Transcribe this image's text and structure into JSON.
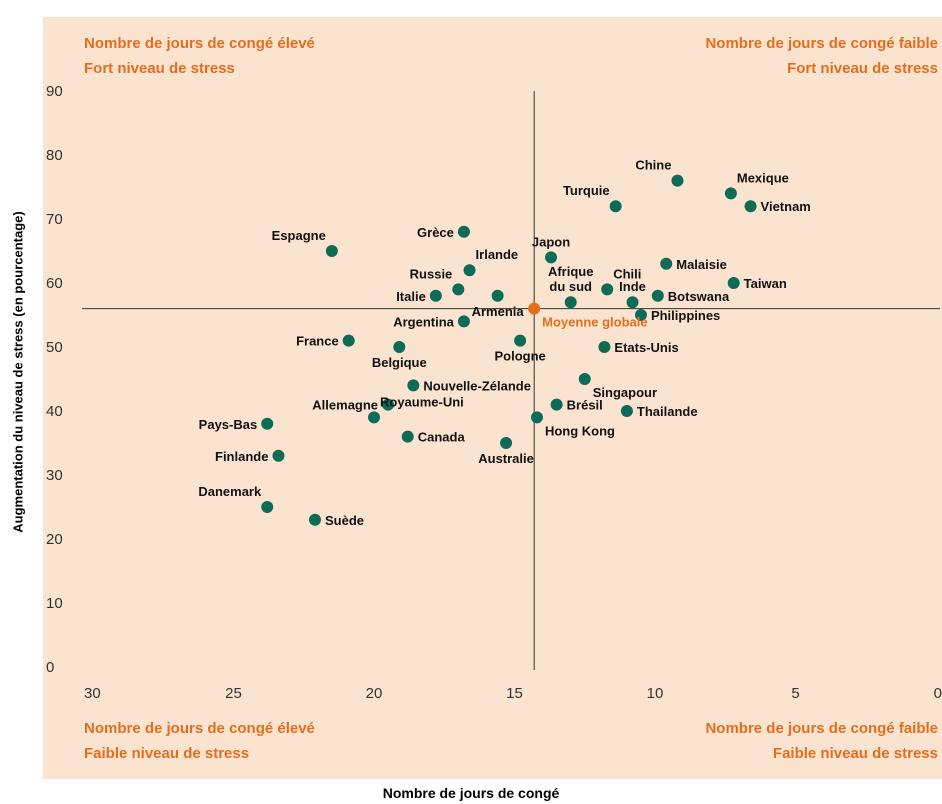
{
  "chart_data": {
    "type": "scatter",
    "xlabel": "Nombre de jours de congé",
    "ylabel": "Augmentation du niveau de stress (en pourcentage)",
    "x_axis": {
      "min": 0,
      "max": 30,
      "reversed": true,
      "ticks": [
        30,
        25,
        20,
        15,
        10,
        5,
        0
      ]
    },
    "y_axis": {
      "min": 0,
      "max": 90,
      "ticks": [
        0,
        10,
        20,
        30,
        40,
        50,
        60,
        70,
        80,
        90
      ]
    },
    "grid": false,
    "reference_lines": {
      "x": 14.3,
      "y": 56
    },
    "quadrant_labels": {
      "top_left": [
        "Nombre de jours de congé élevé",
        "Fort niveau de stress"
      ],
      "top_right": [
        "Nombre de jours de congé faible",
        "Fort niveau de stress"
      ],
      "bottom_left": [
        "Nombre de jours de congé élevé",
        "Faible niveau de stress"
      ],
      "bottom_right": [
        "Nombre de jours de congé faible",
        "Faible niveau de stress"
      ]
    },
    "colors": {
      "points": "#0e6b58",
      "highlight": "#e46d1e",
      "background": "#fae4d0",
      "quadrant_text": "#e46d1e"
    },
    "points": [
      {
        "name": "Chine",
        "x": 9.2,
        "y": 76,
        "label": "Chine",
        "anchor": "top-left"
      },
      {
        "name": "Mexique",
        "x": 7.3,
        "y": 74,
        "label": "Mexique",
        "anchor": "top-right"
      },
      {
        "name": "Vietnam",
        "x": 6.6,
        "y": 72,
        "label": "Vietnam",
        "anchor": "right"
      },
      {
        "name": "Turquie",
        "x": 11.4,
        "y": 72,
        "label": "Turquie",
        "anchor": "top-left"
      },
      {
        "name": "Grèce",
        "x": 16.8,
        "y": 68,
        "label": "Grèce",
        "anchor": "left"
      },
      {
        "name": "Espagne",
        "x": 21.5,
        "y": 65,
        "label": "Espagne",
        "anchor": "top-left"
      },
      {
        "name": "Japon",
        "x": 13.7,
        "y": 64,
        "label": "Japon",
        "anchor": "top"
      },
      {
        "name": "Malaisie",
        "x": 9.6,
        "y": 63,
        "label": "Malaisie",
        "anchor": "right"
      },
      {
        "name": "Irlande",
        "x": 16.6,
        "y": 62,
        "label": "Irlande",
        "anchor": "top-right"
      },
      {
        "name": "Russie",
        "x": 17.0,
        "y": 59,
        "label": "Russie",
        "anchor": "top-left"
      },
      {
        "name": "Taiwan",
        "x": 7.2,
        "y": 60,
        "label": "Taiwan",
        "anchor": "right"
      },
      {
        "name": "Chili",
        "x": 11.7,
        "y": 59,
        "label": "Chili",
        "anchor": "top-right"
      },
      {
        "name": "Italie",
        "x": 17.8,
        "y": 58,
        "label": "Italie",
        "anchor": "left"
      },
      {
        "name": "Armenia",
        "x": 15.6,
        "y": 58,
        "label": "Armenia",
        "anchor": "bottom"
      },
      {
        "name": "Afrique du sud",
        "x": 13.0,
        "y": 57,
        "label": "Afrique\ndu sud",
        "anchor": "top"
      },
      {
        "name": "Inde",
        "x": 10.8,
        "y": 57,
        "label": "Inde",
        "anchor": "top"
      },
      {
        "name": "Botswana",
        "x": 9.9,
        "y": 58,
        "label": "Botswana",
        "anchor": "right"
      },
      {
        "name": "Philippines",
        "x": 10.5,
        "y": 55,
        "label": "Philippines",
        "anchor": "right"
      },
      {
        "name": "Argentina",
        "x": 16.8,
        "y": 54,
        "label": "Argentina",
        "anchor": "left"
      },
      {
        "name": "France",
        "x": 20.9,
        "y": 51,
        "label": "France",
        "anchor": "left"
      },
      {
        "name": "Belgique",
        "x": 19.1,
        "y": 50,
        "label": "Belgique",
        "anchor": "bottom"
      },
      {
        "name": "Pologne",
        "x": 14.8,
        "y": 51,
        "label": "Pologne",
        "anchor": "bottom"
      },
      {
        "name": "Etats-Unis",
        "x": 11.8,
        "y": 50,
        "label": "Etats-Unis",
        "anchor": "right"
      },
      {
        "name": "Singapour",
        "x": 12.5,
        "y": 45,
        "label": "Singapour",
        "anchor": "bottom-right"
      },
      {
        "name": "Nouvelle-Zélande",
        "x": 18.6,
        "y": 44,
        "label": "Nouvelle-Zélande",
        "anchor": "right"
      },
      {
        "name": "Allemagne",
        "x": 19.5,
        "y": 41,
        "label": "Allemagne",
        "anchor": "left"
      },
      {
        "name": "Royaume-Uni",
        "x": 20.0,
        "y": 39,
        "label": "Royaume-Uni",
        "anchor": "top-right"
      },
      {
        "name": "Brésil",
        "x": 13.5,
        "y": 41,
        "label": "Brésil",
        "anchor": "right"
      },
      {
        "name": "Thailande",
        "x": 11.0,
        "y": 40,
        "label": "Thailande",
        "anchor": "right"
      },
      {
        "name": "Hong Kong",
        "x": 14.2,
        "y": 39,
        "label": "Hong Kong",
        "anchor": "bottom-right"
      },
      {
        "name": "Pays-Bas",
        "x": 23.8,
        "y": 38,
        "label": "Pays-Bas",
        "anchor": "left"
      },
      {
        "name": "Canada",
        "x": 18.8,
        "y": 36,
        "label": "Canada",
        "anchor": "right"
      },
      {
        "name": "Australie",
        "x": 15.3,
        "y": 35,
        "label": "Australie",
        "anchor": "bottom"
      },
      {
        "name": "Finlande",
        "x": 23.4,
        "y": 33,
        "label": "Finlande",
        "anchor": "left"
      },
      {
        "name": "Danemark",
        "x": 23.8,
        "y": 25,
        "label": "Danemark",
        "anchor": "top-left"
      },
      {
        "name": "Suède",
        "x": 22.1,
        "y": 23,
        "label": "Suède",
        "anchor": "right"
      },
      {
        "name": "Moyenne globale",
        "x": 14.3,
        "y": 56,
        "label": "Moyenne globale",
        "anchor": "bottom-right",
        "highlight": true
      }
    ]
  }
}
